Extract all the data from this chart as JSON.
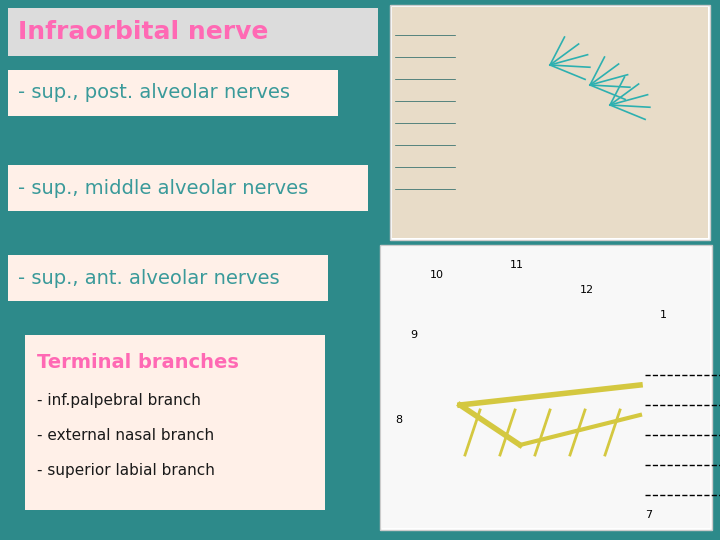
{
  "background_color": "#2d8a8a",
  "title": "Infraorbital nerve",
  "title_color": "#ff69b4",
  "title_bg": "#dcdcdc",
  "title_font_size": 18,
  "bullet_bg": "#fff0e8",
  "bullet_color": "#3a9a9a",
  "bullet_font_size": 14,
  "bullets": [
    "- sup., post. alveolar nerves",
    "- sup., middle alveolar nerves",
    "- sup., ant. alveolar nerves"
  ],
  "terminal_title": "Terminal branches",
  "terminal_title_color": "#ff69b4",
  "terminal_title_font_size": 14,
  "terminal_bg": "#fff0e8",
  "terminal_bullet_color": "#1a1a1a",
  "terminal_bullet_font_size": 11,
  "terminal_bullets": [
    "- inf.palpebral branch",
    "- external nasal branch",
    "- superior labial branch"
  ],
  "top_image_bg": "#f5f0e8",
  "bot_image_bg": "#f8f8f8"
}
